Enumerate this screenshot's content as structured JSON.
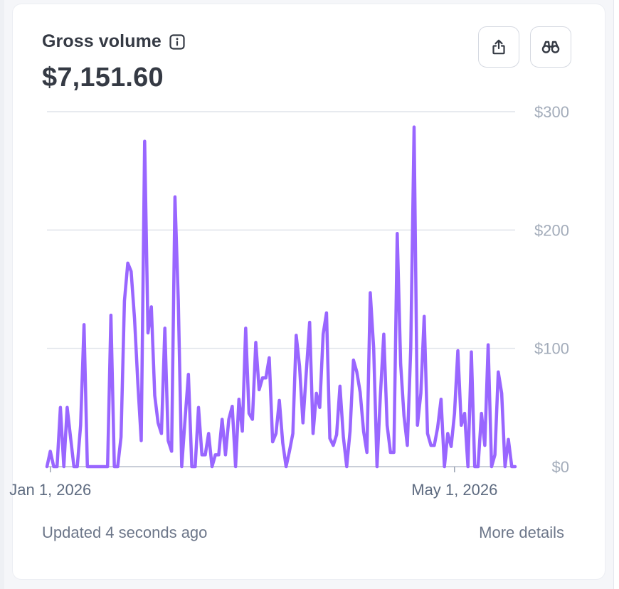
{
  "card": {
    "title": "Gross volume",
    "total": "$7,151.60",
    "updated_text": "Updated 4 seconds ago",
    "details_label": "More details"
  },
  "colors": {
    "line": "#9966ff",
    "grid": "#dfe3ea",
    "axis": "#a3acba",
    "text": "#353a44"
  },
  "icons": {
    "info": "info-icon",
    "export": "export-icon",
    "explore": "binoculars-icon"
  },
  "chart_data": {
    "type": "line",
    "ylim": [
      0,
      300
    ],
    "yticks": [
      {
        "value": 300,
        "label": "$300"
      },
      {
        "value": 200,
        "label": "$200"
      },
      {
        "value": 100,
        "label": "$100"
      },
      {
        "value": 0,
        "label": "$0"
      }
    ],
    "x_range": [
      "2025-12-31",
      "2026-05-19"
    ],
    "xticks": [
      {
        "date": "2026-01-01",
        "label": "Jan 1, 2026"
      },
      {
        "date": "2026-05-01",
        "label": "May 1, 2026"
      }
    ],
    "grid": true,
    "series": [
      {
        "x": [
          "2025-12-31",
          "2026-01-01",
          "2026-01-02",
          "2026-01-03",
          "2026-01-04",
          "2026-01-05",
          "2026-01-06",
          "2026-01-07",
          "2026-01-08",
          "2026-01-09",
          "2026-01-10",
          "2026-01-11",
          "2026-01-12",
          "2026-01-13",
          "2026-01-14",
          "2026-01-15",
          "2026-01-16",
          "2026-01-17",
          "2026-01-18",
          "2026-01-19",
          "2026-01-20",
          "2026-01-21",
          "2026-01-22",
          "2026-01-23",
          "2026-01-24",
          "2026-01-25",
          "2026-01-26",
          "2026-01-27",
          "2026-01-28",
          "2026-01-29",
          "2026-01-30",
          "2026-01-31",
          "2026-02-01",
          "2026-02-02",
          "2026-02-03",
          "2026-02-04",
          "2026-02-05",
          "2026-02-06",
          "2026-02-07",
          "2026-02-08",
          "2026-02-09",
          "2026-02-10",
          "2026-02-11",
          "2026-02-12",
          "2026-02-13",
          "2026-02-14",
          "2026-02-15",
          "2026-02-16",
          "2026-02-17",
          "2026-02-18",
          "2026-02-19",
          "2026-02-20",
          "2026-02-21",
          "2026-02-22",
          "2026-02-23",
          "2026-02-24",
          "2026-02-25",
          "2026-02-26",
          "2026-02-27",
          "2026-02-28",
          "2026-03-01",
          "2026-03-02",
          "2026-03-03",
          "2026-03-04",
          "2026-03-05",
          "2026-03-06",
          "2026-03-07",
          "2026-03-08",
          "2026-03-09",
          "2026-03-10",
          "2026-03-11",
          "2026-03-12",
          "2026-03-13",
          "2026-03-14",
          "2026-03-15",
          "2026-03-16",
          "2026-03-17",
          "2026-03-18",
          "2026-03-19",
          "2026-03-20",
          "2026-03-21",
          "2026-03-22",
          "2026-03-23",
          "2026-03-24",
          "2026-03-25",
          "2026-03-26",
          "2026-03-27",
          "2026-03-28",
          "2026-03-29",
          "2026-03-30",
          "2026-03-31",
          "2026-04-01",
          "2026-04-02",
          "2026-04-03",
          "2026-04-04",
          "2026-04-05",
          "2026-04-06",
          "2026-04-07",
          "2026-04-08",
          "2026-04-09",
          "2026-04-10",
          "2026-04-11",
          "2026-04-12",
          "2026-04-13",
          "2026-04-14",
          "2026-04-15",
          "2026-04-16",
          "2026-04-17",
          "2026-04-18",
          "2026-04-19",
          "2026-04-20",
          "2026-04-21",
          "2026-04-22",
          "2026-04-23",
          "2026-04-24",
          "2026-04-25",
          "2026-04-26",
          "2026-04-27",
          "2026-04-28",
          "2026-04-29",
          "2026-04-30",
          "2026-05-01",
          "2026-05-02",
          "2026-05-03",
          "2026-05-04",
          "2026-05-05",
          "2026-05-06",
          "2026-05-07",
          "2026-05-08",
          "2026-05-09",
          "2026-05-10",
          "2026-05-11",
          "2026-05-12",
          "2026-05-13",
          "2026-05-14",
          "2026-05-15",
          "2026-05-16",
          "2026-05-17",
          "2026-05-18",
          "2026-05-19"
        ],
        "values": [
          0,
          13,
          0,
          0,
          50,
          0,
          50,
          25,
          0,
          0,
          35,
          120,
          0,
          0,
          0,
          0,
          0,
          0,
          0,
          128,
          0,
          0,
          25,
          140,
          172,
          165,
          125,
          70,
          22,
          275,
          113,
          135,
          60,
          37,
          28,
          117,
          22,
          13,
          228,
          140,
          0,
          40,
          78,
          0,
          0,
          50,
          10,
          10,
          28,
          0,
          10,
          10,
          40,
          10,
          40,
          51,
          0,
          57,
          30,
          117,
          45,
          40,
          105,
          65,
          75,
          75,
          92,
          21,
          28,
          56,
          20,
          0,
          13,
          28,
          111,
          85,
          37,
          80,
          122,
          28,
          62,
          50,
          112,
          130,
          24,
          18,
          27,
          68,
          25,
          0,
          30,
          90,
          80,
          63,
          30,
          12,
          147,
          100,
          0,
          60,
          112,
          35,
          12,
          12,
          197,
          87,
          43,
          18,
          100,
          287,
          35,
          62,
          127,
          28,
          18,
          18,
          33,
          57,
          0,
          28,
          17,
          45,
          98,
          35,
          45,
          0,
          97,
          0,
          0,
          45,
          18,
          103,
          0,
          10,
          80,
          62,
          0,
          23,
          0,
          0
        ],
        "color": "#9966ff"
      }
    ]
  }
}
